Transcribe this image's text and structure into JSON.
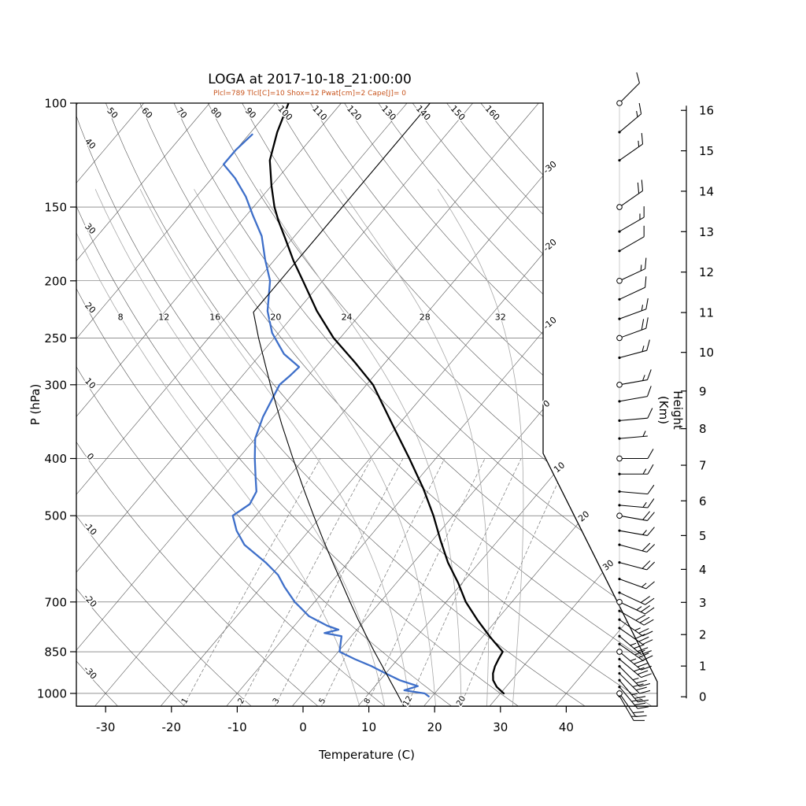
{
  "title": "LOGA at 2017-10-18_21:00:00",
  "params_line": "Plcl=789 Tlcl[C]=10 Shox=12 Pwat[cm]=2 Cape[J]= 0",
  "colors": {
    "params_text": "#c8551e",
    "temperature_curve": "#000000",
    "dewpoint_curve": "#3e6fc9",
    "reference_curve": "#000000",
    "grid_line": "#555555",
    "moist_adiabat": "#a8a8a8",
    "mixing_ratio": "#777777",
    "outline": "#000000"
  },
  "axes": {
    "pressure_label": "P (hPa)",
    "pressure_ticks_hPa": [
      100,
      150,
      200,
      250,
      300,
      400,
      500,
      700,
      850,
      1000
    ],
    "temperature_label": "Temperature (C)",
    "temperature_ticks_C": [
      -30,
      -20,
      -10,
      0,
      10,
      20,
      30,
      40
    ],
    "height_label": "Height (Km)",
    "height_ticks_km": [
      0,
      1,
      2,
      3,
      4,
      5,
      6,
      7,
      8,
      9,
      10,
      11,
      12,
      13,
      14,
      15,
      16
    ]
  },
  "background": {
    "isotherm_edge_labels_C": [
      -30,
      -20,
      -10,
      0,
      10,
      20,
      30
    ],
    "dry_adiabat_top_labels_C": [
      50,
      60,
      70,
      80,
      90,
      100,
      110,
      120,
      130,
      140,
      150,
      160
    ],
    "dry_adiabat_left_labels_C": [
      40,
      30,
      20,
      10,
      0,
      -10,
      -20,
      -30
    ],
    "moist_adiabat_labels_C": [
      8,
      12,
      16,
      20,
      24,
      28,
      32
    ],
    "mixing_ratio_labels_g_kg": [
      1,
      2,
      3,
      5,
      8,
      12,
      20
    ],
    "mandatory_level_circles_hPa": [
      100,
      150,
      200,
      250,
      300,
      400,
      500,
      700,
      850,
      1000
    ]
  },
  "chart_data": {
    "type": "line",
    "subtype": "skew-t-log-p-sounding",
    "title": "LOGA at 2017-10-18_21:00:00",
    "xlabel": "Temperature (C)",
    "ylabel_left": "P (hPa)",
    "ylabel_right": "Height (Km)",
    "x_range_C": [
      -40,
      45
    ],
    "pressure_range_hPa": [
      100,
      1050
    ],
    "series": [
      {
        "name": "temperature",
        "points_p_T": [
          [
            1000,
            30.5
          ],
          [
            975,
            28.6
          ],
          [
            950,
            27.2
          ],
          [
            925,
            26.3
          ],
          [
            900,
            25.7
          ],
          [
            875,
            25.3
          ],
          [
            850,
            25
          ],
          [
            820,
            22.6
          ],
          [
            800,
            21
          ],
          [
            750,
            17
          ],
          [
            700,
            13
          ],
          [
            650,
            9.4
          ],
          [
            600,
            5.2
          ],
          [
            550,
            1.2
          ],
          [
            500,
            -3
          ],
          [
            450,
            -8
          ],
          [
            400,
            -14
          ],
          [
            350,
            -21
          ],
          [
            300,
            -29
          ],
          [
            275,
            -34.6
          ],
          [
            250,
            -41
          ],
          [
            225,
            -47
          ],
          [
            200,
            -53
          ],
          [
            185,
            -57
          ],
          [
            170,
            -61
          ],
          [
            158,
            -64.5
          ],
          [
            150,
            -66.8
          ],
          [
            138,
            -70
          ],
          [
            125,
            -73.5
          ],
          [
            112,
            -76
          ],
          [
            100,
            -78
          ]
        ]
      },
      {
        "name": "dewpoint",
        "points_p_T": [
          [
            1012,
            19.5
          ],
          [
            1000,
            18.5
          ],
          [
            988,
            15
          ],
          [
            972,
            16.5
          ],
          [
            950,
            13
          ],
          [
            925,
            10
          ],
          [
            900,
            7
          ],
          [
            875,
            3.5
          ],
          [
            850,
            0.2
          ],
          [
            820,
            -0.8
          ],
          [
            800,
            -1.5
          ],
          [
            790,
            -4.5
          ],
          [
            780,
            -2.8
          ],
          [
            768,
            -5
          ],
          [
            740,
            -9
          ],
          [
            700,
            -13
          ],
          [
            660,
            -16.5
          ],
          [
            630,
            -19
          ],
          [
            600,
            -22.5
          ],
          [
            560,
            -28
          ],
          [
            530,
            -31
          ],
          [
            500,
            -33.5
          ],
          [
            478,
            -32.4
          ],
          [
            455,
            -33
          ],
          [
            430,
            -35
          ],
          [
            400,
            -37.5
          ],
          [
            370,
            -40
          ],
          [
            340,
            -41.6
          ],
          [
            300,
            -43.2
          ],
          [
            290,
            -42.8
          ],
          [
            280,
            -42.5
          ],
          [
            266,
            -46.5
          ],
          [
            245,
            -51
          ],
          [
            225,
            -54.5
          ],
          [
            200,
            -58
          ],
          [
            184,
            -61.5
          ],
          [
            168,
            -65
          ],
          [
            155,
            -69
          ],
          [
            144,
            -72.5
          ],
          [
            134,
            -76.5
          ],
          [
            127,
            -80
          ],
          [
            120,
            -80
          ],
          [
            113,
            -79.5
          ]
        ]
      },
      {
        "name": "standard-atmosphere-reference",
        "points_p_T": [
          [
            1050,
            16.9
          ],
          [
            1000,
            14.3
          ],
          [
            950,
            11.5
          ],
          [
            900,
            8.6
          ],
          [
            850,
            5.5
          ],
          [
            800,
            2.3
          ],
          [
            750,
            -1.1
          ],
          [
            700,
            -4.6
          ],
          [
            650,
            -8.3
          ],
          [
            600,
            -12.3
          ],
          [
            550,
            -16.6
          ],
          [
            500,
            -21.2
          ],
          [
            450,
            -26.2
          ],
          [
            400,
            -31.7
          ],
          [
            350,
            -37.8
          ],
          [
            300,
            -44.6
          ],
          [
            250,
            -52.4
          ],
          [
            226,
            -56.5
          ],
          [
            200,
            -56.5
          ],
          [
            150,
            -56.5
          ],
          [
            100,
            -56.5
          ]
        ]
      }
    ],
    "wind_barbs_p_dir_kt": [
      [
        100,
        45,
        10
      ],
      [
        112,
        50,
        15
      ],
      [
        125,
        55,
        15
      ],
      [
        150,
        55,
        20
      ],
      [
        165,
        60,
        15
      ],
      [
        178,
        60,
        10
      ],
      [
        200,
        65,
        15
      ],
      [
        215,
        65,
        10
      ],
      [
        232,
        70,
        15
      ],
      [
        250,
        70,
        20
      ],
      [
        270,
        75,
        15
      ],
      [
        300,
        80,
        15
      ],
      [
        320,
        80,
        10
      ],
      [
        345,
        85,
        10
      ],
      [
        370,
        85,
        5
      ],
      [
        400,
        90,
        10
      ],
      [
        425,
        90,
        15
      ],
      [
        455,
        95,
        10
      ],
      [
        480,
        95,
        15
      ],
      [
        500,
        100,
        20
      ],
      [
        530,
        100,
        15
      ],
      [
        560,
        105,
        20
      ],
      [
        600,
        105,
        20
      ],
      [
        640,
        110,
        15
      ],
      [
        675,
        115,
        20
      ],
      [
        700,
        115,
        25
      ],
      [
        725,
        120,
        30
      ],
      [
        750,
        125,
        25
      ],
      [
        775,
        125,
        30
      ],
      [
        800,
        130,
        35
      ],
      [
        825,
        125,
        30
      ],
      [
        850,
        130,
        35
      ],
      [
        875,
        130,
        30
      ],
      [
        900,
        135,
        25
      ],
      [
        925,
        135,
        30
      ],
      [
        950,
        140,
        25
      ],
      [
        975,
        140,
        30
      ],
      [
        1000,
        145,
        20
      ],
      [
        1010,
        150,
        15
      ]
    ]
  }
}
